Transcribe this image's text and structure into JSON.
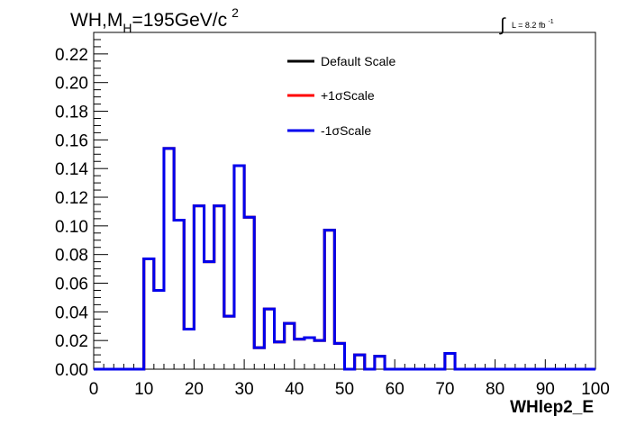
{
  "chart_data": {
    "type": "line",
    "title": "WH,M",
    "title_sub": "H",
    "title_rest": "=195GeV/c",
    "title_sup": "2",
    "lumi_label": "L = 8.2 fb",
    "lumi_sup": "-1",
    "xlabel": "WHlep2_E",
    "ylabel": "",
    "xlim": [
      0,
      100
    ],
    "ylim": [
      0,
      0.235
    ],
    "grid": false,
    "legend_position": "top-center",
    "xticks": [
      0,
      10,
      20,
      30,
      40,
      50,
      60,
      70,
      80,
      90,
      100
    ],
    "xtick_labels": [
      "0",
      "10",
      "20",
      "30",
      "40",
      "50",
      "60",
      "70",
      "80",
      "90",
      "100"
    ],
    "yticks": [
      0,
      0.02,
      0.04,
      0.06,
      0.08,
      0.1,
      0.12,
      0.14,
      0.16,
      0.18,
      0.2,
      0.22
    ],
    "ytick_labels": [
      "0.00",
      "0.02",
      "0.04",
      "0.06",
      "0.08",
      "0.10",
      "0.12",
      "0.14",
      "0.16",
      "0.18",
      "0.20",
      "0.22"
    ],
    "bin_edges": [
      0,
      2,
      4,
      6,
      8,
      10,
      12,
      14,
      16,
      18,
      20,
      22,
      24,
      26,
      28,
      30,
      32,
      34,
      36,
      38,
      40,
      42,
      44,
      46,
      48,
      50,
      52,
      54,
      56,
      58,
      60,
      62,
      64,
      66,
      68,
      70,
      72,
      74,
      76,
      78,
      80,
      82,
      84,
      86,
      88,
      90,
      92,
      94,
      96,
      98,
      100
    ],
    "series": [
      {
        "name": "Default Scale",
        "color": "#000000",
        "values": [
          0,
          0,
          0,
          0,
          0,
          0.077,
          0.055,
          0.154,
          0.104,
          0.028,
          0.114,
          0.075,
          0.114,
          0.037,
          0.142,
          0.106,
          0.015,
          0.042,
          0.019,
          0.032,
          0.021,
          0.022,
          0.02,
          0.097,
          0.018,
          0,
          0.01,
          0,
          0.009,
          0,
          0,
          0,
          0,
          0,
          0,
          0.011,
          0,
          0,
          0,
          0,
          0,
          0,
          0,
          0,
          0,
          0,
          0,
          0,
          0,
          0
        ]
      },
      {
        "name": "+1σScale",
        "color": "#ff0000",
        "values": [
          0,
          0,
          0,
          0,
          0,
          0.077,
          0.055,
          0.154,
          0.104,
          0.028,
          0.114,
          0.075,
          0.114,
          0.037,
          0.142,
          0.106,
          0.015,
          0.042,
          0.019,
          0.032,
          0.021,
          0.022,
          0.02,
          0.097,
          0.018,
          0,
          0.01,
          0,
          0.009,
          0,
          0,
          0,
          0,
          0,
          0,
          0.011,
          0,
          0,
          0,
          0,
          0,
          0,
          0,
          0,
          0,
          0,
          0,
          0,
          0,
          0
        ]
      },
      {
        "name": "-1σScale",
        "color": "#0000ee",
        "values": [
          0,
          0,
          0,
          0,
          0,
          0.077,
          0.055,
          0.154,
          0.104,
          0.028,
          0.114,
          0.075,
          0.114,
          0.037,
          0.142,
          0.106,
          0.015,
          0.042,
          0.019,
          0.032,
          0.021,
          0.022,
          0.02,
          0.097,
          0.018,
          0,
          0.01,
          0,
          0.009,
          0,
          0,
          0,
          0,
          0,
          0,
          0.011,
          0,
          0,
          0,
          0,
          0,
          0,
          0,
          0,
          0,
          0,
          0,
          0,
          0,
          0
        ]
      }
    ]
  }
}
